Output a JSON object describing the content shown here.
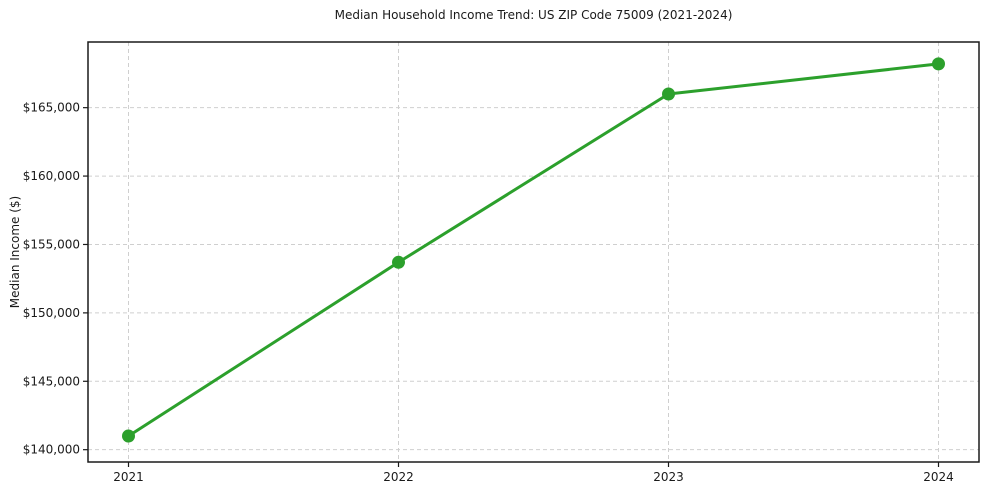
{
  "chart_data": {
    "type": "line",
    "title": "Median Household Income Trend: US ZIP Code 75009 (2021-2024)",
    "xlabel": "",
    "ylabel": "Median Income ($)",
    "x": [
      2021,
      2022,
      2023,
      2024
    ],
    "categories": [
      "2021",
      "2022",
      "2023",
      "2024"
    ],
    "series": [
      {
        "name": "Median Household Income",
        "values": [
          141000,
          153700,
          166000,
          168200
        ]
      }
    ],
    "xlim": [
      2020.85,
      2024.15
    ],
    "ylim": [
      139100,
      169800
    ],
    "xticks": {
      "values": [
        2021,
        2022,
        2023,
        2024
      ],
      "labels": [
        "2021",
        "2022",
        "2023",
        "2024"
      ]
    },
    "yticks": {
      "values": [
        140000,
        145000,
        150000,
        155000,
        160000,
        165000
      ],
      "labels": [
        "$140,000",
        "$145,000",
        "$150,000",
        "$155,000",
        "$160,000",
        "$165,000"
      ]
    },
    "grid": true,
    "legend": "none",
    "style": {
      "line_color": "#2ca02c",
      "marker": "circle",
      "marker_radius": 6.5,
      "line_width": 3,
      "grid_color": "#cfcfcf",
      "grid_dash": "4 3",
      "spine_color": "#1a1a1a",
      "text_color": "#1a1a1a"
    }
  }
}
